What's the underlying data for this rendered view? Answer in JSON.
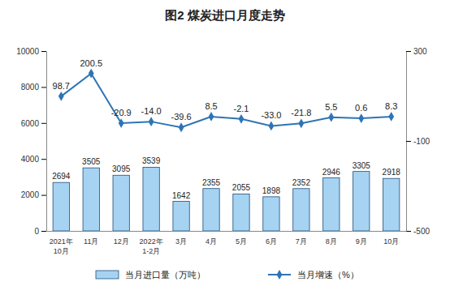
{
  "chart_data": {
    "type": "bar",
    "title": "图2 煤炭进口月度走势",
    "categories": [
      "2021年\n10月",
      "11月",
      "12月",
      "2022年\n1-2月",
      "3月",
      "4月",
      "5月",
      "6月",
      "7月",
      "8月",
      "9月",
      "10月"
    ],
    "series": [
      {
        "name": "当月进口量（万吨）",
        "type": "bar",
        "color": "#a6d3f2",
        "values": [
          2694,
          3505,
          3095,
          3539,
          1642,
          2355,
          2055,
          1898,
          2352,
          2946,
          3305,
          2918
        ]
      },
      {
        "name": "当月增速（%）",
        "type": "line",
        "color": "#2e74b5",
        "marker": "diamond",
        "axis": "y2",
        "values": [
          98.7,
          200.5,
          -20.9,
          -14.0,
          -39.6,
          8.5,
          -2.1,
          -33.0,
          -21.8,
          5.5,
          0.6,
          8.3
        ],
        "value_labels": [
          "98.7",
          "200.5",
          "-20.9",
          "-14.0",
          "-39.6",
          "8.5",
          "-2.1",
          "-33.0",
          "-21.8",
          "5.5",
          "0.6",
          "8.3"
        ]
      }
    ],
    "ylim": [
      0,
      10000
    ],
    "yticks": [
      0,
      2000,
      4000,
      6000,
      8000,
      10000
    ],
    "y2lim": [
      -500,
      300
    ],
    "y2ticks": [
      -500,
      -100,
      300
    ],
    "data_labels": true,
    "legend": "bottom"
  }
}
